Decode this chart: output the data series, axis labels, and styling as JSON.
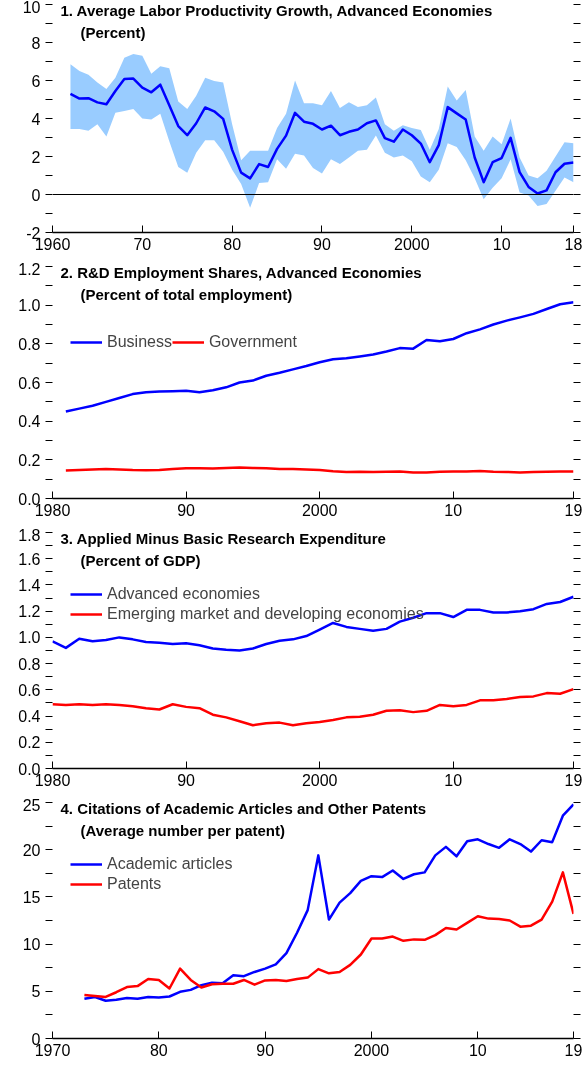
{
  "chart_data": [
    {
      "type": "line",
      "title": "1. Average Labor Productivity Growth, Advanced Economies",
      "subtitle": "(Percent)",
      "x": [
        1962,
        1963,
        1964,
        1965,
        1966,
        1967,
        1968,
        1969,
        1970,
        1971,
        1972,
        1973,
        1974,
        1975,
        1976,
        1977,
        1978,
        1979,
        1980,
        1981,
        1982,
        1983,
        1984,
        1985,
        1986,
        1987,
        1988,
        1989,
        1990,
        1991,
        1992,
        1993,
        1994,
        1995,
        1996,
        1997,
        1998,
        1999,
        2000,
        2001,
        2002,
        2003,
        2004,
        2005,
        2006,
        2007,
        2008,
        2009,
        2010,
        2011,
        2012,
        2013,
        2014,
        2015,
        2016,
        2017,
        2018
      ],
      "series": [
        {
          "color": "#0000ff",
          "values": [
            5.3,
            5.05,
            5.07,
            4.85,
            4.75,
            5.45,
            6.08,
            6.1,
            5.62,
            5.38,
            5.78,
            4.7,
            3.6,
            3.12,
            3.75,
            4.58,
            4.38,
            3.98,
            2.35,
            1.15,
            0.85,
            1.6,
            1.45,
            2.4,
            3.1,
            4.3,
            3.83,
            3.72,
            3.42,
            3.62,
            3.12,
            3.3,
            3.42,
            3.75,
            3.9,
            2.97,
            2.78,
            3.42,
            3.12,
            2.68,
            1.7,
            2.6,
            4.6,
            4.27,
            3.95,
            1.95,
            0.65,
            1.7,
            1.92,
            2.98,
            1.18,
            0.4,
            0.05,
            0.22,
            1.17,
            1.62,
            1.68
          ],
          "lower": [
            3.45,
            3.45,
            3.35,
            3.7,
            3.05,
            4.3,
            4.4,
            4.5,
            4.0,
            3.95,
            4.25,
            2.8,
            1.45,
            1.15,
            2.2,
            2.85,
            2.85,
            2.25,
            1.3,
            0.55,
            -0.7,
            0.6,
            0.65,
            1.85,
            1.35,
            2.15,
            2.05,
            1.4,
            1.1,
            1.85,
            1.6,
            1.95,
            2.3,
            2.35,
            3.1,
            2.2,
            1.95,
            2.05,
            1.75,
            0.95,
            0.65,
            1.3,
            2.7,
            2.5,
            1.8,
            0.85,
            -0.25,
            0.35,
            0.85,
            1.85,
            0.1,
            -0.05,
            -0.6,
            -0.5,
            0.2,
            0.9,
            0.65
          ],
          "upper": [
            6.85,
            6.5,
            6.3,
            5.9,
            5.55,
            6.15,
            7.2,
            7.4,
            7.3,
            6.35,
            6.75,
            6.65,
            4.9,
            4.5,
            5.2,
            6.15,
            5.98,
            5.9,
            3.7,
            1.8,
            2.3,
            2.3,
            2.3,
            3.5,
            4.25,
            6.0,
            4.8,
            4.8,
            4.7,
            5.45,
            4.55,
            4.85,
            4.6,
            4.7,
            5.1,
            3.7,
            3.35,
            3.65,
            3.5,
            3.4,
            2.35,
            3.45,
            5.68,
            4.95,
            5.5,
            3.05,
            2.3,
            3.05,
            2.65,
            4.0,
            1.95,
            1.0,
            0.85,
            1.25,
            2.0,
            2.75,
            2.7
          ]
        }
      ],
      "xlim": [
        1960,
        2018
      ],
      "xticks": [
        1960,
        {
          "value": 1970,
          "label": "70"
        },
        {
          "value": 1980,
          "label": "80"
        },
        {
          "value": 1990,
          "label": "90"
        },
        2000,
        {
          "value": 2010,
          "label": "10"
        },
        {
          "value": 2018,
          "label": "18"
        }
      ],
      "ylim": [
        -2,
        10
      ],
      "yticks": [
        -2,
        {
          "value": -1,
          "label": null
        },
        0,
        {
          "value": 1,
          "label": null
        },
        2,
        {
          "value": 3,
          "label": null
        },
        4,
        {
          "value": 5,
          "label": null
        },
        6,
        {
          "value": 7,
          "label": null
        },
        8,
        {
          "value": 9,
          "label": null
        },
        10
      ],
      "ref_lines": [
        {
          "axis": "y",
          "value": 0,
          "color": "#000000"
        }
      ]
    },
    {
      "type": "line",
      "title": "2. R&D Employment Shares, Advanced Economies",
      "subtitle": "(Percent of total employment)",
      "x": [
        1981,
        1982,
        1983,
        1984,
        1985,
        1986,
        1987,
        1988,
        1989,
        1990,
        1991,
        1992,
        1993,
        1994,
        1995,
        1996,
        1997,
        1998,
        1999,
        2000,
        2001,
        2002,
        2003,
        2004,
        2005,
        2006,
        2007,
        2008,
        2009,
        2010,
        2011,
        2012,
        2013,
        2014,
        2015,
        2016,
        2017,
        2018,
        2019
      ],
      "series": [
        {
          "name": "Business",
          "color": "#0000ff",
          "values": [
            0.45,
            0.465,
            0.48,
            0.5,
            0.52,
            0.54,
            0.55,
            0.553,
            0.555,
            0.557,
            0.55,
            0.56,
            0.575,
            0.6,
            0.61,
            0.635,
            0.65,
            0.668,
            0.685,
            0.705,
            0.72,
            0.725,
            0.735,
            0.745,
            0.76,
            0.778,
            0.775,
            0.82,
            0.813,
            0.825,
            0.855,
            0.875,
            0.9,
            0.92,
            0.937,
            0.955,
            0.98,
            1.005,
            1.015
          ]
        },
        {
          "name": "Government",
          "color": "#ff0000",
          "values": [
            0.145,
            0.148,
            0.15,
            0.152,
            0.15,
            0.147,
            0.146,
            0.147,
            0.152,
            0.156,
            0.156,
            0.155,
            0.158,
            0.16,
            0.158,
            0.157,
            0.152,
            0.153,
            0.15,
            0.147,
            0.141,
            0.137,
            0.138,
            0.137,
            0.138,
            0.14,
            0.135,
            0.135,
            0.138,
            0.14,
            0.14,
            0.142,
            0.138,
            0.137,
            0.135,
            0.137,
            0.139,
            0.14,
            0.14
          ]
        }
      ],
      "xlim": [
        1980,
        2019
      ],
      "xticks": [
        1980,
        {
          "value": 1990,
          "label": "90"
        },
        2000,
        {
          "value": 2010,
          "label": "10"
        },
        {
          "value": 2019,
          "label": "19"
        }
      ],
      "ylim": [
        0,
        1.2
      ],
      "yticks": [
        {
          "value": 0,
          "label": "0.0"
        },
        {
          "value": 0.1,
          "label": null
        },
        0.2,
        {
          "value": 0.3,
          "label": null
        },
        0.4,
        {
          "value": 0.5,
          "label": null
        },
        0.6,
        {
          "value": 0.7,
          "label": null
        },
        0.8,
        {
          "value": 0.9,
          "label": null
        },
        {
          "value": 1,
          "label": "1.0"
        },
        {
          "value": 1.1,
          "label": null
        },
        1.2
      ],
      "legend": "top left"
    },
    {
      "type": "line",
      "title": "3. Applied Minus Basic Research Expenditure",
      "subtitle": "(Percent of GDP)",
      "x": [
        1980,
        1981,
        1982,
        1983,
        1984,
        1985,
        1986,
        1987,
        1988,
        1989,
        1990,
        1991,
        1992,
        1993,
        1994,
        1995,
        1996,
        1997,
        1998,
        1999,
        2000,
        2001,
        2002,
        2003,
        2004,
        2005,
        2006,
        2007,
        2008,
        2009,
        2010,
        2011,
        2012,
        2013,
        2014,
        2015,
        2016,
        2017,
        2018,
        2019
      ],
      "series": [
        {
          "name": "Advanced economies",
          "color": "#0000ff",
          "values": [
            0.97,
            0.92,
            0.99,
            0.97,
            0.98,
            1.0,
            0.985,
            0.965,
            0.96,
            0.95,
            0.955,
            0.94,
            0.915,
            0.905,
            0.9,
            0.915,
            0.95,
            0.975,
            0.985,
            1.01,
            1.06,
            1.11,
            1.08,
            1.065,
            1.05,
            1.065,
            1.12,
            1.15,
            1.185,
            1.185,
            1.155,
            1.21,
            1.21,
            1.19,
            1.19,
            1.2,
            1.215,
            1.255,
            1.27,
            1.31
          ]
        },
        {
          "name": "Emerging market and developing economies",
          "color": "#ff0000",
          "values": [
            0.49,
            0.485,
            0.49,
            0.485,
            0.49,
            0.485,
            0.475,
            0.46,
            0.45,
            0.49,
            0.47,
            0.46,
            0.41,
            0.39,
            0.36,
            0.33,
            0.345,
            0.35,
            0.33,
            0.345,
            0.355,
            0.37,
            0.39,
            0.395,
            0.41,
            0.44,
            0.445,
            0.43,
            0.44,
            0.485,
            0.475,
            0.485,
            0.52,
            0.52,
            0.53,
            0.545,
            0.55,
            0.575,
            0.57,
            0.605
          ]
        }
      ],
      "xlim": [
        1980,
        2019
      ],
      "xticks": [
        1980,
        {
          "value": 1990,
          "label": "90"
        },
        2000,
        {
          "value": 2010,
          "label": "10"
        },
        {
          "value": 2019,
          "label": "19"
        }
      ],
      "ylim": [
        0,
        1.8
      ],
      "yticks": [
        {
          "value": 0,
          "label": "0.0"
        },
        {
          "value": 0.1,
          "label": null
        },
        0.2,
        {
          "value": 0.3,
          "label": null
        },
        0.4,
        {
          "value": 0.5,
          "label": null
        },
        0.6,
        {
          "value": 0.7,
          "label": null
        },
        0.8,
        {
          "value": 0.9,
          "label": null
        },
        {
          "value": 1,
          "label": "1.0"
        },
        {
          "value": 1.1,
          "label": null
        },
        1.2,
        {
          "value": 1.3,
          "label": null
        },
        1.4,
        {
          "value": 1.5,
          "label": null
        },
        1.6,
        {
          "value": 1.7,
          "label": null
        },
        1.8
      ],
      "legend": "top left"
    },
    {
      "type": "line",
      "title": "4. Citations of Academic Articles and Other Patents",
      "subtitle": "(Average number per patent)",
      "x": [
        1973,
        1974,
        1975,
        1976,
        1977,
        1978,
        1979,
        1980,
        1981,
        1982,
        1983,
        1984,
        1985,
        1986,
        1987,
        1988,
        1989,
        1990,
        1991,
        1992,
        1993,
        1994,
        1995,
        1996,
        1997,
        1998,
        1999,
        2000,
        2001,
        2002,
        2003,
        2004,
        2005,
        2006,
        2007,
        2008,
        2009,
        2010,
        2011,
        2012,
        2013,
        2014,
        2015,
        2016,
        2017,
        2018,
        2019
      ],
      "series": [
        {
          "name": "Academic articles",
          "color": "#0000ff",
          "values": [
            4.2,
            4.4,
            4.0,
            4.1,
            4.3,
            4.2,
            4.4,
            4.35,
            4.45,
            4.95,
            5.15,
            5.65,
            5.9,
            5.85,
            6.7,
            6.6,
            7.05,
            7.4,
            7.85,
            9.05,
            11.2,
            13.6,
            19.4,
            12.6,
            14.4,
            15.4,
            16.7,
            17.2,
            17.1,
            17.8,
            16.9,
            17.4,
            17.6,
            19.4,
            20.3,
            19.3,
            20.9,
            21.1,
            20.6,
            20.2,
            21.1,
            20.6,
            19.8,
            21.0,
            20.8,
            23.6,
            24.8
          ]
        },
        {
          "name": "Patents",
          "color": "#ff0000",
          "values": [
            4.6,
            4.5,
            4.4,
            4.9,
            5.45,
            5.55,
            6.3,
            6.2,
            5.3,
            7.4,
            6.2,
            5.4,
            5.75,
            5.8,
            5.8,
            6.2,
            5.7,
            6.15,
            6.2,
            6.1,
            6.3,
            6.45,
            7.35,
            6.9,
            7.05,
            7.8,
            8.9,
            10.6,
            10.6,
            10.8,
            10.35,
            10.5,
            10.45,
            10.95,
            11.7,
            11.55,
            12.25,
            12.95,
            12.7,
            12.65,
            12.5,
            11.85,
            11.95,
            12.6,
            14.5,
            17.6,
            13.2
          ]
        }
      ],
      "xlim": [
        1970,
        2019
      ],
      "xticks": [
        1970,
        {
          "value": 1980,
          "label": "80"
        },
        {
          "value": 1990,
          "label": "90"
        },
        2000,
        {
          "value": 2010,
          "label": "10"
        },
        {
          "value": 2019,
          "label": "19"
        }
      ],
      "ylim": [
        0,
        25
      ],
      "yticks": [
        0,
        {
          "value": 2.5,
          "label": null
        },
        5,
        {
          "value": 7.5,
          "label": null
        },
        10,
        {
          "value": 12.5,
          "label": null
        },
        15,
        {
          "value": 17.5,
          "label": null
        },
        20,
        {
          "value": 22.5,
          "label": null
        },
        25
      ],
      "legend": "top left"
    }
  ]
}
